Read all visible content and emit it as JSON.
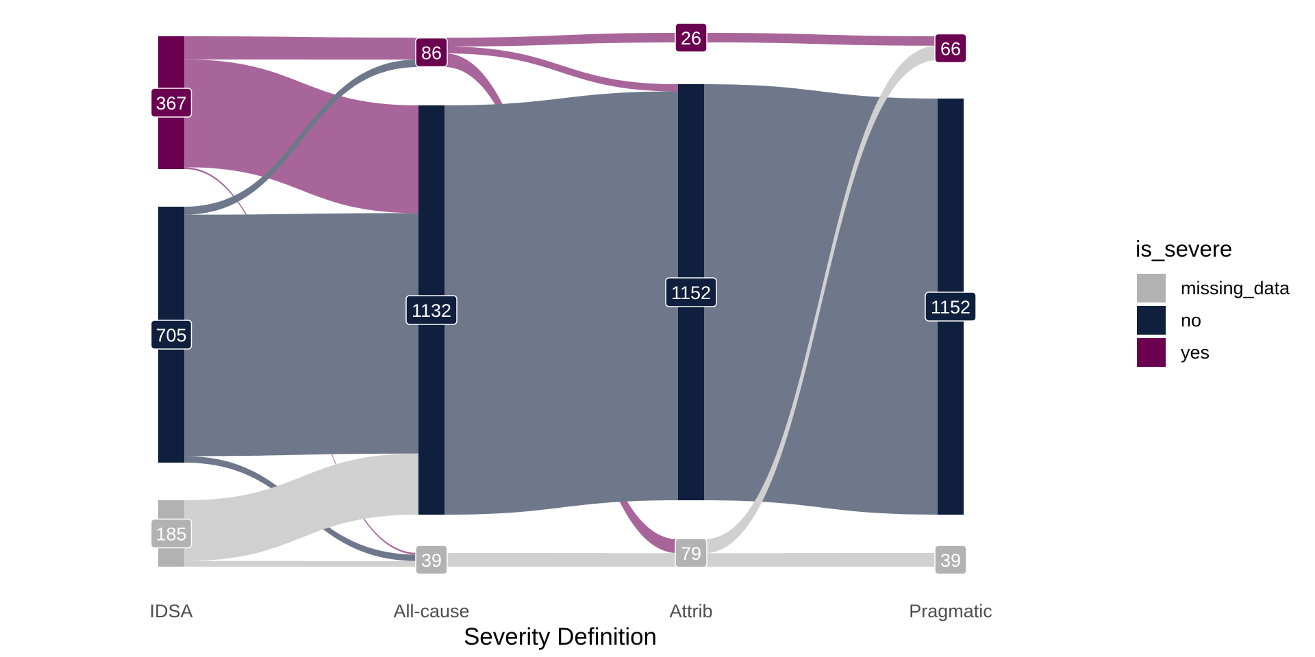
{
  "chart_data": {
    "type": "sankey",
    "xlabel": "Severity Definition",
    "axes": [
      "IDSA",
      "All-cause",
      "Attrib",
      "Pragmatic"
    ],
    "categories": [
      "missing_data",
      "no",
      "yes"
    ],
    "colors": {
      "yes": "#6b0050",
      "no": "#0f1f3d",
      "missing_data": "#b2b2b2",
      "label_border": "#ffffff",
      "label_text": "#ffffff"
    },
    "legend": {
      "title": "is_severe",
      "position": "right",
      "entries": [
        "missing_data",
        "no",
        "yes"
      ]
    },
    "nodes": [
      {
        "axis": "IDSA",
        "category": "yes",
        "value": 367,
        "label": "367"
      },
      {
        "axis": "IDSA",
        "category": "no",
        "value": 705,
        "label": "705"
      },
      {
        "axis": "IDSA",
        "category": "missing_data",
        "value": 185,
        "label": "185"
      },
      {
        "axis": "All-cause",
        "category": "yes",
        "value": 86,
        "label": "86"
      },
      {
        "axis": "All-cause",
        "category": "no",
        "value": 1132,
        "label": "1132"
      },
      {
        "axis": "All-cause",
        "category": "missing_data",
        "value": 39,
        "label": "39"
      },
      {
        "axis": "Attrib",
        "category": "yes",
        "value": 26,
        "label": "26"
      },
      {
        "axis": "Attrib",
        "category": "no",
        "value": 1152,
        "label": "1152"
      },
      {
        "axis": "Attrib",
        "category": "missing_data",
        "value": 79,
        "label": "79"
      },
      {
        "axis": "Pragmatic",
        "category": "yes",
        "value": 66,
        "label": "66"
      },
      {
        "axis": "Pragmatic",
        "category": "no",
        "value": 1152,
        "label": "1152"
      },
      {
        "axis": "Pragmatic",
        "category": "missing_data",
        "value": 39,
        "label": "39"
      }
    ],
    "flows": [
      {
        "from_axis": "IDSA",
        "from": "yes",
        "to": "yes",
        "value": 64
      },
      {
        "from_axis": "IDSA",
        "from": "yes",
        "to": "no",
        "value": 298
      },
      {
        "from_axis": "IDSA",
        "from": "yes",
        "to": "missing_data",
        "value": 5
      },
      {
        "from_axis": "IDSA",
        "from": "no",
        "to": "yes",
        "value": 22
      },
      {
        "from_axis": "IDSA",
        "from": "no",
        "to": "no",
        "value": 665
      },
      {
        "from_axis": "IDSA",
        "from": "no",
        "to": "missing_data",
        "value": 18
      },
      {
        "from_axis": "IDSA",
        "from": "missing_data",
        "to": "no",
        "value": 169
      },
      {
        "from_axis": "IDSA",
        "from": "missing_data",
        "to": "missing_data",
        "value": 16
      },
      {
        "from_axis": "All-cause",
        "from": "yes",
        "to": "yes",
        "value": 26
      },
      {
        "from_axis": "All-cause",
        "from": "yes",
        "to": "no",
        "value": 20
      },
      {
        "from_axis": "All-cause",
        "from": "yes",
        "to": "missing_data",
        "value": 40
      },
      {
        "from_axis": "All-cause",
        "from": "no",
        "to": "no",
        "value": 1132
      },
      {
        "from_axis": "All-cause",
        "from": "missing_data",
        "to": "missing_data",
        "value": 39
      },
      {
        "from_axis": "Attrib",
        "from": "yes",
        "to": "yes",
        "value": 26
      },
      {
        "from_axis": "Attrib",
        "from": "no",
        "to": "no",
        "value": 1152
      },
      {
        "from_axis": "Attrib",
        "from": "missing_data",
        "to": "yes",
        "value": 40
      },
      {
        "from_axis": "Attrib",
        "from": "missing_data",
        "to": "missing_data",
        "value": 39
      }
    ]
  }
}
